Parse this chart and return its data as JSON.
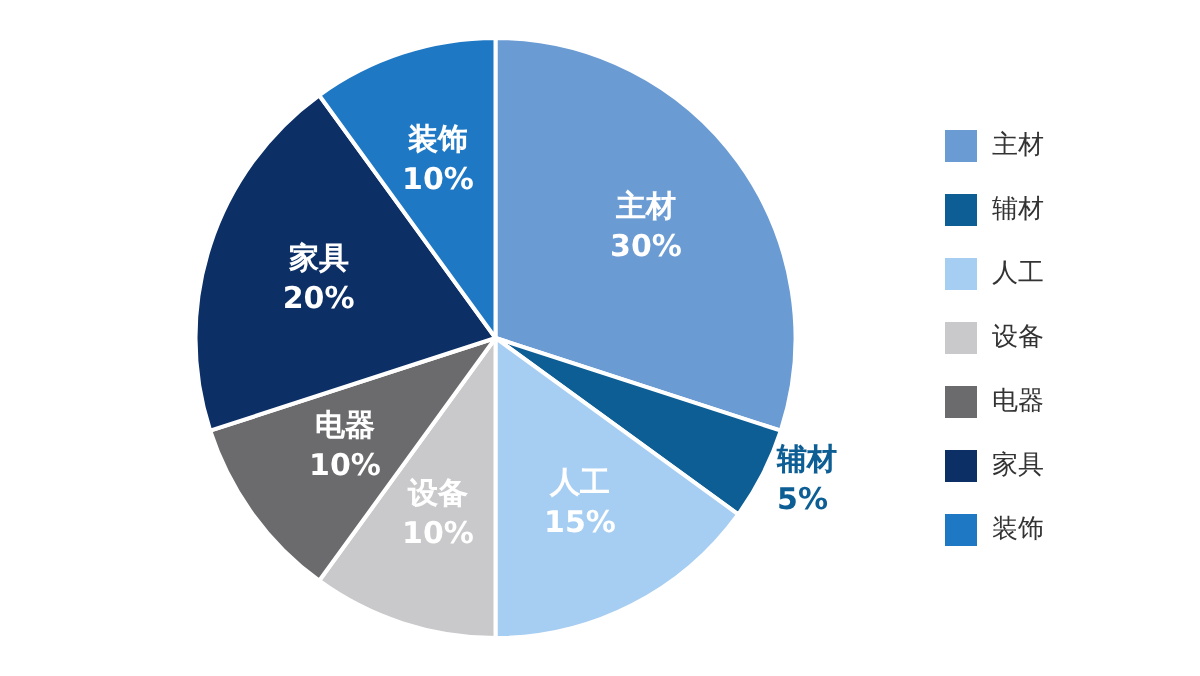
{
  "chart_data": {
    "type": "pie",
    "categories": [
      "主材",
      "辅材",
      "人工",
      "设备",
      "电器",
      "家具",
      "装饰"
    ],
    "values": [
      30,
      5,
      15,
      10,
      10,
      20,
      10
    ],
    "value_labels": [
      "30%",
      "5%",
      "15%",
      "10%",
      "10%",
      "20%",
      "10%"
    ],
    "colors": [
      "#6a9bd3",
      "#0d5e94",
      "#a6cdf2",
      "#c9c9cb",
      "#6b6b6d",
      "#0c2f66",
      "#1f78c4"
    ],
    "legend": "right"
  }
}
